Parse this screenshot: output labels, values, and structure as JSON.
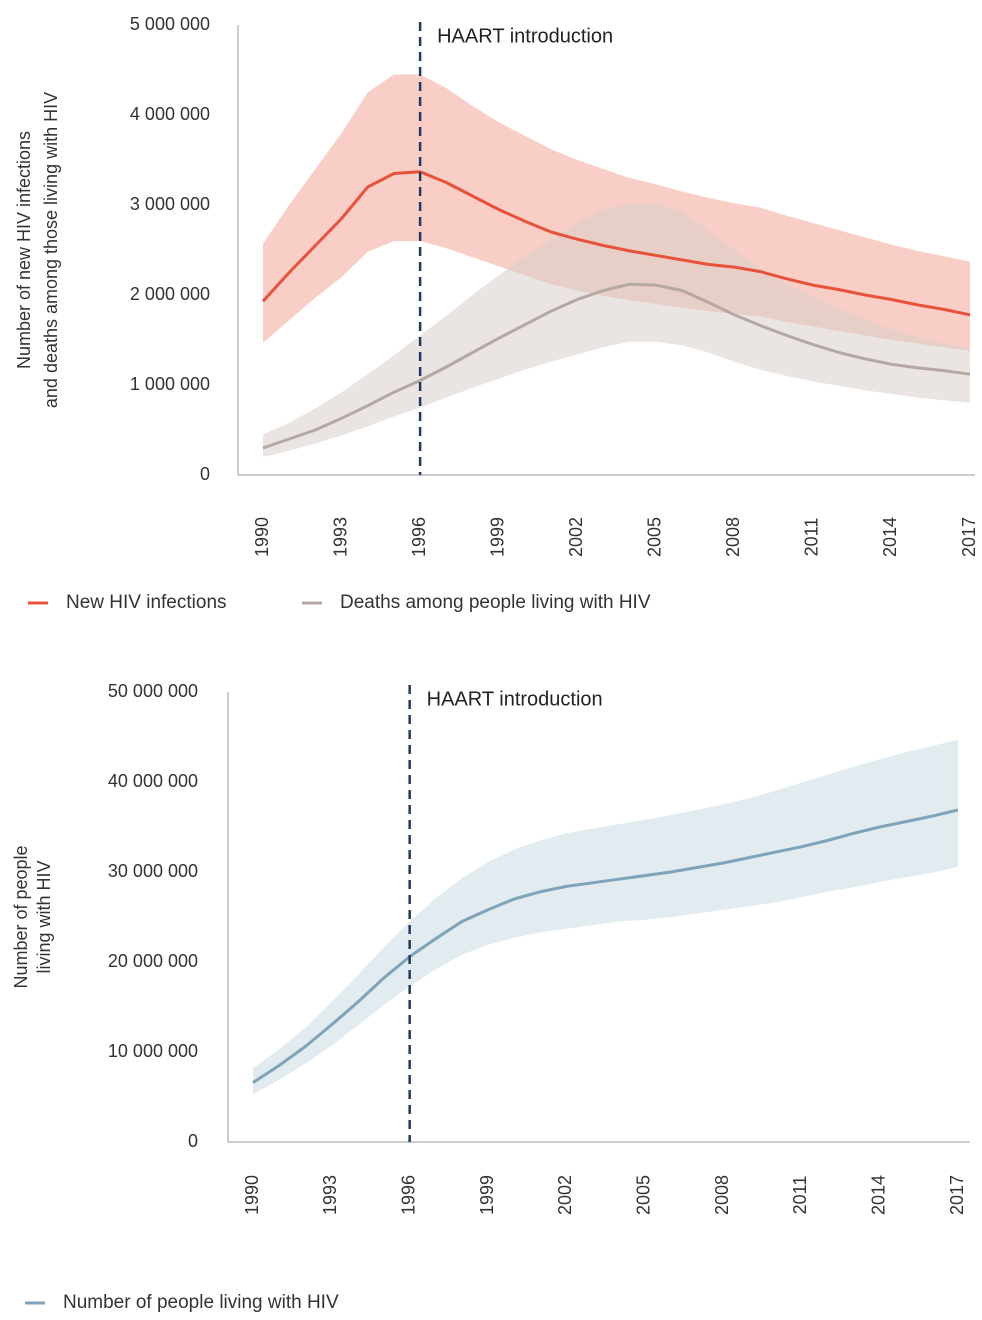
{
  "chart_data": [
    {
      "type": "line",
      "ylabel": [
        "Number of new HIV infections",
        "and deaths among those living with HIV"
      ],
      "x": [
        1990,
        1991,
        1992,
        1993,
        1994,
        1995,
        1996,
        1997,
        1998,
        1999,
        2000,
        2001,
        2002,
        2003,
        2004,
        2005,
        2006,
        2007,
        2008,
        2009,
        2010,
        2011,
        2012,
        2013,
        2014,
        2015,
        2016,
        2017
      ],
      "xlim": [
        1990,
        2017
      ],
      "xticks": [
        1990,
        1993,
        1996,
        1999,
        2002,
        2005,
        2008,
        2011,
        2014,
        2017
      ],
      "ylim": [
        0,
        5000000
      ],
      "yticks": [
        0,
        {
          "value": 1000000,
          "label": "1 000 000"
        },
        {
          "value": 2000000,
          "label": "2 000 000"
        },
        {
          "value": 3000000,
          "label": "3 000 000"
        },
        {
          "value": 4000000,
          "label": "4 000 000"
        },
        {
          "value": 5000000,
          "label": "5 000 000"
        }
      ],
      "grid": false,
      "vline": {
        "x": 1996,
        "label": "HAART introduction",
        "color": "#1f3a5f"
      },
      "series": [
        {
          "name": "New HIV infections",
          "color": "#e8523a",
          "band_color": "#f4a597",
          "values": [
            1930000,
            2250000,
            2550000,
            2850000,
            3200000,
            3350000,
            3370000,
            3250000,
            3100000,
            2950000,
            2820000,
            2700000,
            2620000,
            2550000,
            2490000,
            2440000,
            2390000,
            2340000,
            2310000,
            2260000,
            2180000,
            2110000,
            2060000,
            2000000,
            1950000,
            1890000,
            1840000,
            1780000
          ],
          "upper": [
            2570000,
            3000000,
            3400000,
            3800000,
            4250000,
            4450000,
            4450000,
            4300000,
            4100000,
            3920000,
            3770000,
            3620000,
            3500000,
            3400000,
            3300000,
            3230000,
            3150000,
            3080000,
            3020000,
            2970000,
            2880000,
            2800000,
            2720000,
            2640000,
            2560000,
            2490000,
            2430000,
            2370000
          ],
          "lower": [
            1470000,
            1720000,
            1970000,
            2200000,
            2480000,
            2600000,
            2600000,
            2520000,
            2420000,
            2320000,
            2220000,
            2120000,
            2050000,
            1990000,
            1940000,
            1900000,
            1860000,
            1820000,
            1790000,
            1760000,
            1700000,
            1650000,
            1600000,
            1550000,
            1500000,
            1460000,
            1420000,
            1380000
          ]
        },
        {
          "name": "Deaths among people living with HIV",
          "color": "#b5a8a2",
          "band_color": "#d9d0cb",
          "values": [
            300000,
            400000,
            500000,
            630000,
            770000,
            920000,
            1050000,
            1200000,
            1360000,
            1520000,
            1670000,
            1820000,
            1950000,
            2050000,
            2120000,
            2110000,
            2050000,
            1920000,
            1780000,
            1660000,
            1550000,
            1450000,
            1360000,
            1290000,
            1230000,
            1190000,
            1160000,
            1120000
          ],
          "upper": [
            450000,
            580000,
            740000,
            920000,
            1120000,
            1330000,
            1550000,
            1770000,
            2000000,
            2220000,
            2430000,
            2620000,
            2800000,
            2950000,
            3020000,
            3020000,
            2930000,
            2720000,
            2500000,
            2300000,
            2120000,
            1980000,
            1850000,
            1730000,
            1620000,
            1530000,
            1460000,
            1400000
          ],
          "lower": [
            200000,
            270000,
            350000,
            440000,
            540000,
            650000,
            750000,
            860000,
            970000,
            1070000,
            1170000,
            1260000,
            1340000,
            1420000,
            1480000,
            1480000,
            1440000,
            1360000,
            1260000,
            1170000,
            1100000,
            1040000,
            990000,
            940000,
            900000,
            860000,
            830000,
            800000
          ]
        }
      ]
    },
    {
      "type": "line",
      "ylabel": [
        "Number of people",
        "living with HIV"
      ],
      "x": [
        1990,
        1991,
        1992,
        1993,
        1994,
        1995,
        1996,
        1997,
        1998,
        1999,
        2000,
        2001,
        2002,
        2003,
        2004,
        2005,
        2006,
        2007,
        2008,
        2009,
        2010,
        2011,
        2012,
        2013,
        2014,
        2015,
        2016,
        2017
      ],
      "xlim": [
        1990,
        2017
      ],
      "xticks": [
        1990,
        1993,
        1996,
        1999,
        2002,
        2005,
        2008,
        2011,
        2014,
        2017
      ],
      "ylim": [
        0,
        50000000
      ],
      "yticks": [
        0,
        {
          "value": 10000000,
          "label": "10 000 000"
        },
        {
          "value": 20000000,
          "label": "20 000 000"
        },
        {
          "value": 30000000,
          "label": "30 000 000"
        },
        {
          "value": 40000000,
          "label": "40 000 000"
        },
        {
          "value": 50000000,
          "label": "50 000 000"
        }
      ],
      "grid": false,
      "vline": {
        "x": 1996,
        "label": "HAART introduction",
        "color": "#1f3a5f"
      },
      "series": [
        {
          "name": "Number of people living with HIV",
          "color": "#7fa3b8",
          "band_color": "#c9dbe3",
          "values": [
            6600000,
            8500000,
            10600000,
            13000000,
            15500000,
            18200000,
            20600000,
            22600000,
            24500000,
            25800000,
            27000000,
            27800000,
            28400000,
            28800000,
            29200000,
            29600000,
            30000000,
            30500000,
            31000000,
            31600000,
            32200000,
            32800000,
            33500000,
            34300000,
            35000000,
            35600000,
            36200000,
            36900000
          ],
          "upper": [
            8200000,
            10300000,
            12700000,
            15500000,
            18500000,
            21600000,
            24500000,
            27100000,
            29300000,
            31100000,
            32500000,
            33500000,
            34300000,
            34800000,
            35300000,
            35800000,
            36300000,
            36900000,
            37500000,
            38200000,
            39000000,
            39900000,
            40800000,
            41700000,
            42500000,
            43300000,
            44000000,
            44700000
          ],
          "lower": [
            5300000,
            6900000,
            8700000,
            10700000,
            12900000,
            15200000,
            17300000,
            19200000,
            20800000,
            21900000,
            22700000,
            23300000,
            23700000,
            24100000,
            24500000,
            24700000,
            25000000,
            25400000,
            25800000,
            26200000,
            26600000,
            27200000,
            27800000,
            28300000,
            28900000,
            29400000,
            29900000,
            30600000
          ]
        }
      ]
    }
  ]
}
